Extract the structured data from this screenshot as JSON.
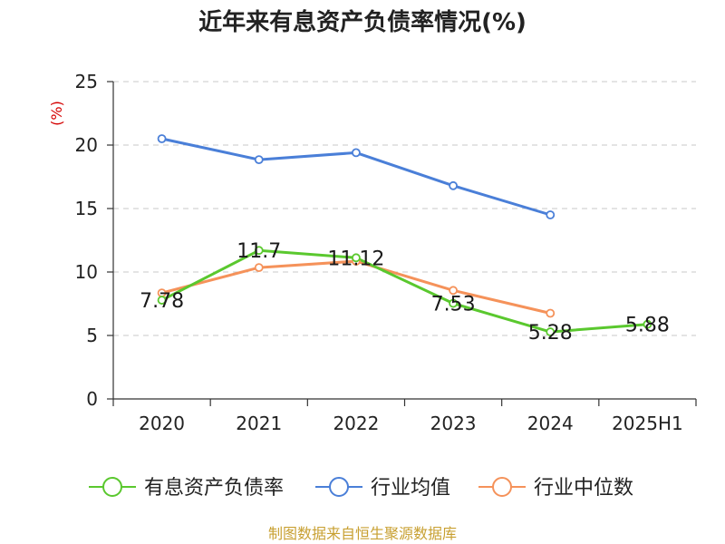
{
  "chart_data": {
    "type": "line",
    "title": "近年来有息资产负债率情况(%)",
    "ylabel": "(%)",
    "categories": [
      "2020",
      "2021",
      "2022",
      "2023",
      "2024",
      "2025H1"
    ],
    "yticks": [
      "0",
      "5",
      "10",
      "15",
      "20",
      "25"
    ],
    "ylim": [
      0,
      25
    ],
    "grid": true,
    "legend_position": "bottom",
    "series": [
      {
        "name": "有息资产负债率",
        "color": "#5ac82e",
        "values": [
          7.78,
          11.7,
          11.12,
          7.53,
          5.28,
          5.88
        ],
        "labels": [
          "7.78",
          "11.7",
          "11.12",
          "7.53",
          "5.28",
          "5.88"
        ]
      },
      {
        "name": "行业均值",
        "color": "#4a7fd8",
        "values": [
          20.5,
          18.85,
          19.4,
          16.8,
          14.5,
          null
        ],
        "labels": []
      },
      {
        "name": "行业中位数",
        "color": "#f5925a",
        "values": [
          8.35,
          10.35,
          10.85,
          8.55,
          6.75,
          null
        ],
        "labels": []
      }
    ]
  },
  "source": "制图数据来自恒生聚源数据库"
}
